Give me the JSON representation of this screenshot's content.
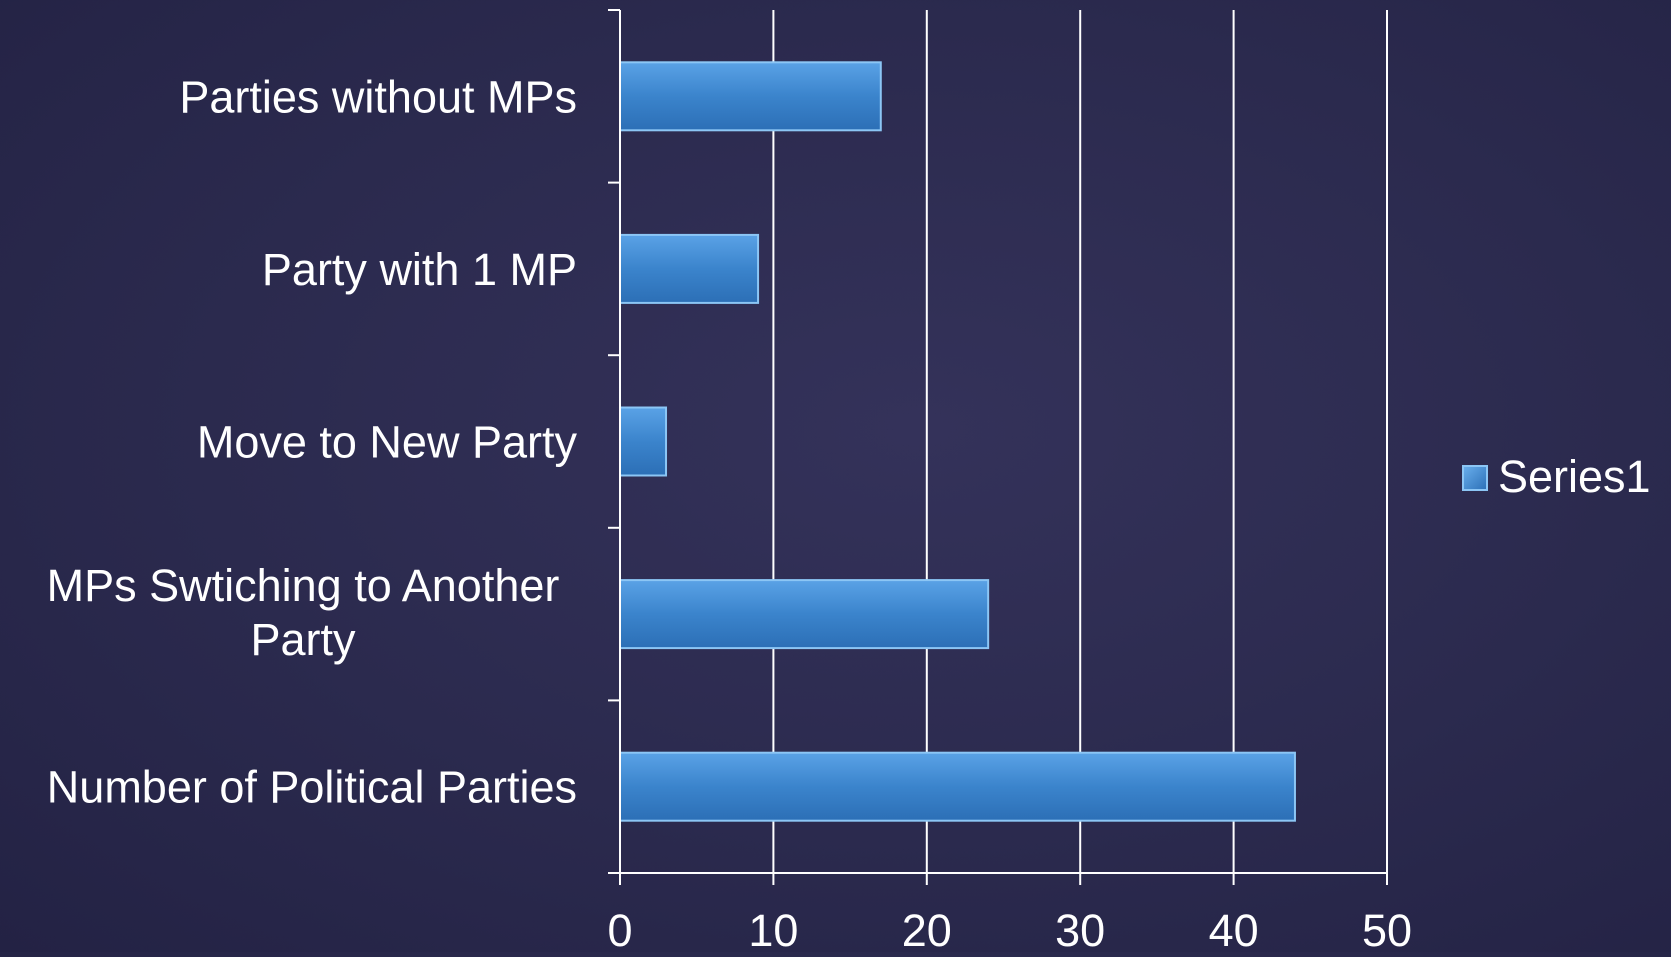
{
  "chart_data": {
    "type": "bar",
    "orientation": "horizontal",
    "categories": [
      "Parties without MPs",
      "Party with 1 MP",
      "Move to New Party",
      "MPs Swtiching to Another Party",
      "Number of Political Parties"
    ],
    "category_label_lines": [
      [
        "Parties without MPs"
      ],
      [
        "Party with 1 MP"
      ],
      [
        "Move to New Party"
      ],
      [
        "MPs Swtiching to Another",
        "Party"
      ],
      [
        "Number of Political Parties"
      ]
    ],
    "series": [
      {
        "name": "Series1",
        "values": [
          17,
          9,
          3,
          24,
          44
        ]
      }
    ],
    "xlim": [
      0,
      50
    ],
    "x_ticks": [
      "0",
      "10",
      "20",
      "30",
      "40",
      "50"
    ],
    "grid": "vertical",
    "legend": "right",
    "bar_color": "#3b8ad6"
  }
}
